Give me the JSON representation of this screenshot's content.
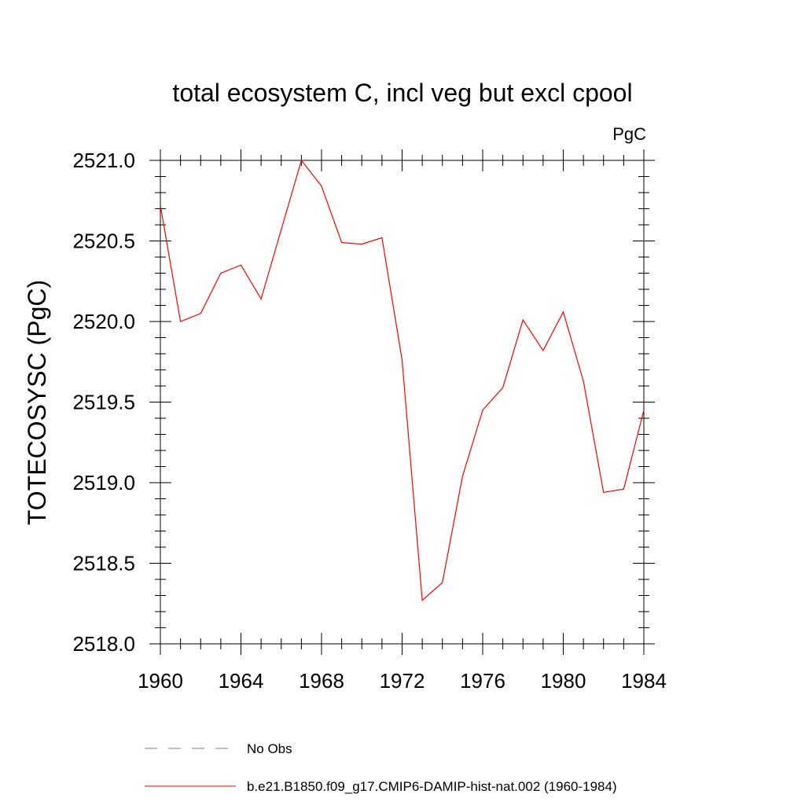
{
  "chart_data": {
    "type": "line",
    "title": "total ecosystem C, incl veg but excl cpool",
    "units_label": "PgC",
    "xlabel": "",
    "ylabel": "TOTECOSYSC  (PgC)",
    "xlim": [
      1960,
      1984
    ],
    "ylim": [
      2518.0,
      2521.0
    ],
    "x_ticks": [
      1960,
      1964,
      1968,
      1972,
      1976,
      1980,
      1984
    ],
    "y_ticks": [
      2518.0,
      2518.5,
      2519.0,
      2519.5,
      2520.0,
      2520.5,
      2521.0
    ],
    "x_tick_labels": [
      "1960",
      "1964",
      "1968",
      "1972",
      "1976",
      "1980",
      "1984"
    ],
    "y_tick_labels": [
      "2518.0",
      "2518.5",
      "2519.0",
      "2519.5",
      "2520.0",
      "2520.5",
      "2521.0"
    ],
    "grid": false,
    "legend_position": "bottom",
    "series": [
      {
        "name": "b.e21.B1850.f09_g17.CMIP6-DAMIP-hist-nat.002 (1960-1984)",
        "color": "#ff0000",
        "style": "solid",
        "x": [
          1960,
          1961,
          1962,
          1963,
          1964,
          1965,
          1966,
          1967,
          1968,
          1969,
          1970,
          1971,
          1972,
          1973,
          1974,
          1975,
          1976,
          1977,
          1978,
          1979,
          1980,
          1981,
          1982,
          1983,
          1984
        ],
        "y": [
          2520.72,
          2520.0,
          2520.05,
          2520.3,
          2520.35,
          2520.14,
          2520.57,
          2521.0,
          2520.84,
          2520.49,
          2520.48,
          2520.52,
          2519.76,
          2518.27,
          2518.38,
          2519.04,
          2519.45,
          2519.59,
          2520.01,
          2519.82,
          2520.06,
          2519.63,
          2518.94,
          2518.96,
          2519.45
        ]
      }
    ],
    "legend": [
      {
        "label": "No Obs",
        "color": "#7b6fb0",
        "style": "dashed"
      },
      {
        "label": "b.e21.B1850.f09_g17.CMIP6-DAMIP-hist-nat.002 (1960-1984)",
        "color": "#ff0000",
        "style": "solid"
      }
    ]
  }
}
